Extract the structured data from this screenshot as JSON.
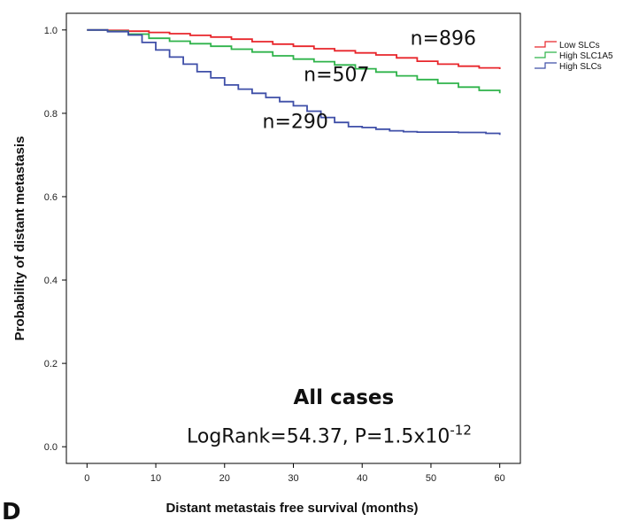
{
  "chart_data": {
    "type": "line",
    "title": "",
    "xlabel": "Distant metastais free survival (months)",
    "ylabel": "Probability of distant metastasis",
    "xlim": [
      -3,
      63
    ],
    "ylim": [
      -0.04,
      1.04
    ],
    "xticks": [
      0,
      10,
      20,
      30,
      40,
      50,
      60
    ],
    "xtick_labels": [
      "0",
      "10",
      "20",
      "30",
      "40",
      "50",
      "60"
    ],
    "yticks": [
      0.0,
      0.2,
      0.4,
      0.6,
      0.8,
      1.0
    ],
    "ytick_labels": [
      "0.0",
      "0.2",
      "0.4",
      "0.6",
      "0.8",
      "1.0"
    ],
    "grid": false,
    "legend_position": "top-right",
    "series": [
      {
        "name": "Low SLCs",
        "color": "#e8262b",
        "x": [
          0,
          3,
          6,
          9,
          12,
          15,
          18,
          21,
          24,
          27,
          30,
          33,
          36,
          39,
          42,
          45,
          48,
          51,
          54,
          57,
          60
        ],
        "y": [
          1.0,
          0.999,
          0.997,
          0.994,
          0.991,
          0.987,
          0.983,
          0.978,
          0.972,
          0.966,
          0.961,
          0.955,
          0.95,
          0.945,
          0.94,
          0.933,
          0.925,
          0.918,
          0.913,
          0.909,
          0.906
        ]
      },
      {
        "name": "High SLC1A5",
        "color": "#2fb34a",
        "x": [
          0,
          3,
          6,
          9,
          12,
          15,
          18,
          21,
          24,
          27,
          30,
          33,
          36,
          39,
          42,
          45,
          48,
          51,
          54,
          57,
          60
        ],
        "y": [
          1.0,
          0.997,
          0.99,
          0.98,
          0.973,
          0.967,
          0.961,
          0.954,
          0.947,
          0.938,
          0.93,
          0.924,
          0.916,
          0.907,
          0.899,
          0.89,
          0.881,
          0.872,
          0.863,
          0.855,
          0.848
        ]
      },
      {
        "name": "High SLCs",
        "color": "#3f4fa8",
        "x": [
          0,
          3,
          6,
          8,
          10,
          12,
          14,
          16,
          18,
          20,
          22,
          24,
          26,
          28,
          30,
          32,
          34,
          36,
          38,
          40,
          42,
          44,
          46,
          48,
          50,
          52,
          54,
          56,
          58,
          60
        ],
        "y": [
          1.0,
          0.996,
          0.988,
          0.97,
          0.952,
          0.935,
          0.918,
          0.9,
          0.885,
          0.868,
          0.858,
          0.848,
          0.838,
          0.828,
          0.818,
          0.805,
          0.79,
          0.778,
          0.768,
          0.766,
          0.762,
          0.758,
          0.756,
          0.755,
          0.755,
          0.755,
          0.754,
          0.754,
          0.752,
          0.748
        ]
      }
    ],
    "annotations": [
      {
        "text": "n=896",
        "x": 47,
        "y": 0.965
      },
      {
        "text": "n=507",
        "x": 31.5,
        "y": 0.877
      },
      {
        "text": "n=290",
        "x": 25.5,
        "y": 0.765
      },
      {
        "text": "All cases",
        "x": 30,
        "y": 0.102,
        "bold": true
      },
      {
        "text": "LogRank=54.37, P=1.5x10",
        "sup": "-12",
        "x": 14.5,
        "y": 0.01
      }
    ]
  },
  "panel_label": "D"
}
